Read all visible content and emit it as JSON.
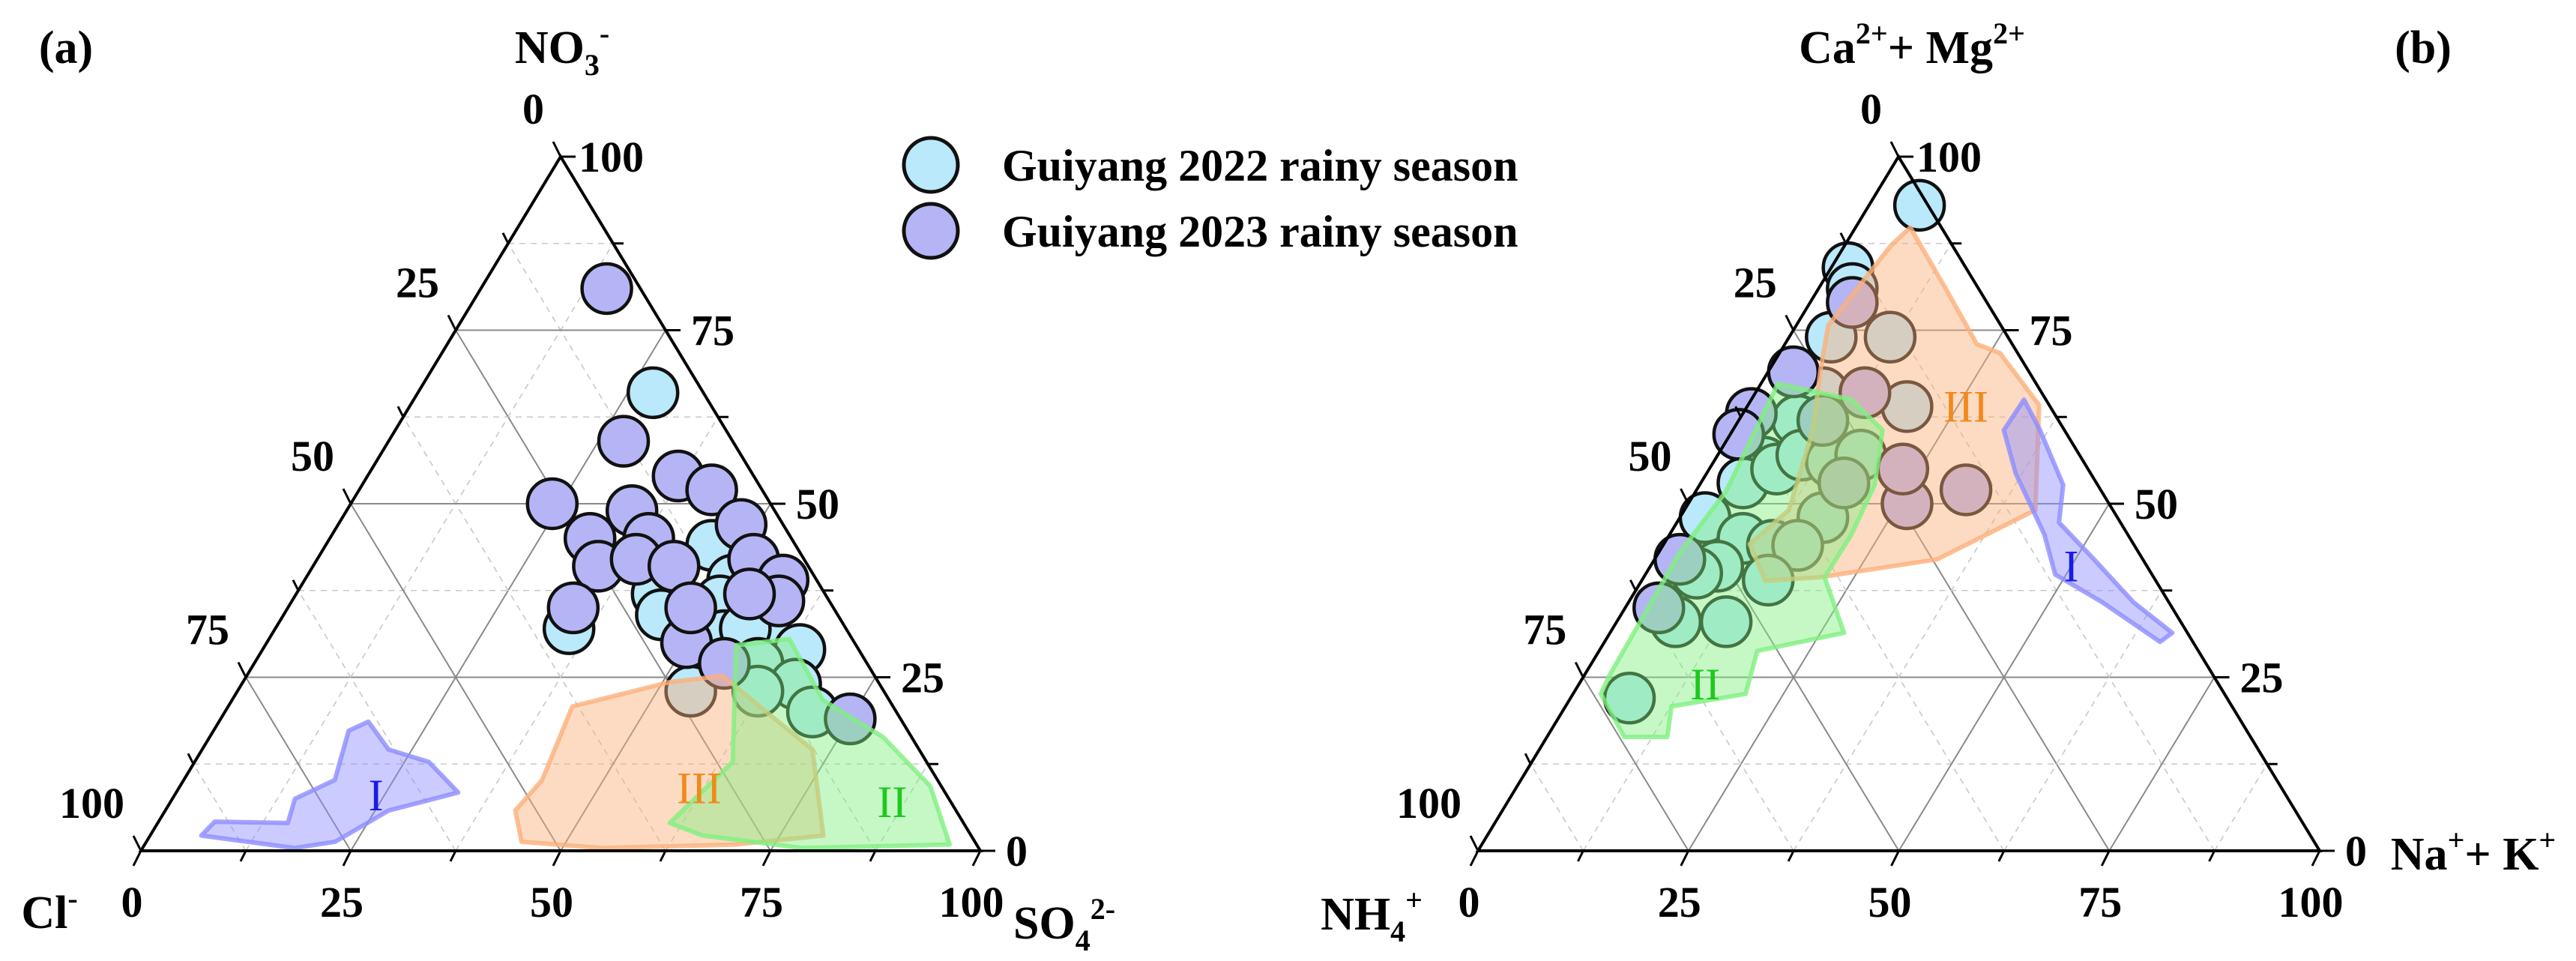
{
  "legend": {
    "items": [
      {
        "label": "Guiyang 2022 rainy season",
        "color": "#b9e9fb"
      },
      {
        "label": "Guiyang 2023 rainy season",
        "color": "#b5b5f5"
      }
    ]
  },
  "chart_data": [
    {
      "panel": "(a)",
      "type": "scatter",
      "subtype": "ternary",
      "grid": true,
      "legend_position": "top-center",
      "axes": {
        "top": {
          "title": [
            {
              "t": "NO"
            },
            {
              "t": "3",
              "pos": "sub"
            },
            {
              "t": "-",
              "pos": "sup"
            }
          ],
          "ticks": [
            "100",
            "75",
            "50",
            "25",
            "0"
          ]
        },
        "left": {
          "title": [
            {
              "t": "Cl"
            },
            {
              "t": "-",
              "pos": "sup"
            }
          ],
          "ticks": [
            "0",
            "25",
            "50",
            "75",
            "100"
          ]
        },
        "right": {
          "title": [
            {
              "t": "SO"
            },
            {
              "t": "4",
              "pos": "sub"
            },
            {
              "t": "2-",
              "pos": "sup"
            }
          ],
          "ticks": [
            "0",
            "25",
            "50",
            "75",
            "100"
          ]
        }
      },
      "point_format": "[top %, right %, left %]",
      "series": [
        {
          "name": "Guiyang 2022 rainy season",
          "color": "#b9e9fb",
          "points": [
            [
              66,
              28,
              6
            ],
            [
              44,
              46,
              10
            ],
            [
              39,
              51,
              10
            ],
            [
              37,
              43,
              20
            ],
            [
              34,
              45,
              21
            ],
            [
              36,
              51,
              13
            ],
            [
              32,
              35,
              33
            ],
            [
              31,
              54,
              15
            ],
            [
              30,
              60,
              10
            ],
            [
              29,
              64,
              7
            ],
            [
              32,
              56,
              12
            ],
            [
              27,
              60,
              13
            ],
            [
              24,
              66,
              10
            ],
            [
              23,
              62,
              15
            ],
            [
              20,
              70,
              10
            ],
            [
              23,
              54,
              23
            ]
          ]
        },
        {
          "name": "Guiyang 2023 rainy season",
          "color": "#b5b5f5",
          "points": [
            [
              81,
              15,
              4
            ],
            [
              59,
              28,
              13
            ],
            [
              54,
              37,
              9
            ],
            [
              52,
              42,
              6
            ],
            [
              50,
              24,
              26
            ],
            [
              49,
              34,
              17
            ],
            [
              45,
              31,
              24
            ],
            [
              47,
              48,
              5
            ],
            [
              45,
              38,
              17
            ],
            [
              41,
              34,
              25
            ],
            [
              42,
              52,
              6
            ],
            [
              42,
              38,
              20
            ],
            [
              39,
              57,
              4
            ],
            [
              41,
              43,
              16
            ],
            [
              35,
              34,
              31
            ],
            [
              36,
              58,
              6
            ],
            [
              37,
              54,
              9
            ],
            [
              30,
              50,
              20
            ],
            [
              27,
              56,
              17
            ],
            [
              19,
              75,
              6
            ],
            [
              35,
              48,
              17
            ]
          ]
        }
      ],
      "regions": [
        {
          "label": "I",
          "fill": "#8c8cff",
          "text_color": "#1a1ae6",
          "label_at": [
            8,
            24
          ],
          "polygon": [
            [
              2.2,
              6.1
            ],
            [
              4.2,
              6.7
            ],
            [
              4,
              15.5
            ],
            [
              7.5,
              14.6
            ],
            [
              10.2,
              18
            ],
            [
              17.3,
              16.1
            ],
            [
              18.6,
              17.8
            ],
            [
              14.6,
              22.2
            ],
            [
              12.8,
              27.9
            ],
            [
              8.4,
              33.6
            ],
            [
              5.8,
              26.6
            ],
            [
              1.3,
              22.5
            ],
            [
              0.4,
              18.1
            ]
          ]
        },
        {
          "label": "III",
          "fill": "#fbb07a",
          "text_color": "#f2891a",
          "label_at": [
            9,
            62
          ],
          "polygon": [
            [
              5.8,
              41.7
            ],
            [
              10.2,
              42.7
            ],
            [
              20.8,
              41
            ],
            [
              24.3,
              50.8
            ],
            [
              25.2,
              56.7
            ],
            [
              18.1,
              67.4
            ],
            [
              14.6,
              72.7
            ],
            [
              2.2,
              80.2
            ],
            [
              0.9,
              70.4
            ],
            [
              0.4,
              54.7
            ],
            [
              1.3,
              44.7
            ]
          ]
        },
        {
          "label": "II",
          "fill": "#80f080",
          "text_color": "#1ec81e",
          "label_at": [
            7,
            86
          ],
          "polygon": [
            [
              4,
              61
            ],
            [
              12.8,
              64.1
            ],
            [
              29.6,
              56.1
            ],
            [
              30.5,
              62
            ],
            [
              21.7,
              70.4
            ],
            [
              16.4,
              80.2
            ],
            [
              9.3,
              89.4
            ],
            [
              0.9,
              95.9
            ],
            [
              0.4,
              78.6
            ],
            [
              2.2,
              65.8
            ]
          ]
        }
      ]
    },
    {
      "panel": "(b)",
      "type": "scatter",
      "subtype": "ternary",
      "grid": true,
      "axes": {
        "top": {
          "title": [
            {
              "t": "Ca"
            },
            {
              "t": "2+",
              "pos": "sup"
            },
            {
              "t": "+ Mg"
            },
            {
              "t": "2+",
              "pos": "sup"
            }
          ],
          "ticks": [
            "100",
            "75",
            "50",
            "25",
            "0"
          ]
        },
        "left": {
          "title": [
            {
              "t": "NH"
            },
            {
              "t": "4",
              "pos": "sub"
            },
            {
              "t": "+",
              "pos": "sup"
            }
          ],
          "ticks": [
            "0",
            "25",
            "50",
            "75",
            "100"
          ]
        },
        "right": {
          "title": [
            {
              "t": "Na"
            },
            {
              "t": "+",
              "pos": "sup"
            },
            {
              "t": "+ K"
            },
            {
              "t": "+",
              "pos": "sup"
            }
          ],
          "ticks": [
            "0",
            "25",
            "50",
            "75",
            "100"
          ]
        }
      },
      "point_format": "[top %, right %, left %]",
      "series": [
        {
          "name": "Guiyang 2022 rainy season",
          "color": "#b9e9fb",
          "points": [
            [
              93,
              6,
              1
            ],
            [
              84,
              2,
              14
            ],
            [
              81,
              4,
              15
            ],
            [
              74,
              5,
              21
            ],
            [
              66,
              8,
              26
            ],
            [
              62,
              7,
              31
            ],
            [
              56,
              6,
              38
            ],
            [
              53,
              5,
              42
            ],
            [
              55,
              8,
              37
            ],
            [
              57,
              10,
              33
            ],
            [
              56,
              14,
              30
            ],
            [
              57,
              17,
              26
            ],
            [
              48,
              17,
              35
            ],
            [
              48,
              3,
              49
            ],
            [
              45,
              9,
              46
            ],
            [
              44,
              13,
              43
            ],
            [
              44,
              16,
              40
            ],
            [
              41,
              8,
              51
            ],
            [
              40,
              6,
              54
            ],
            [
              39,
              15,
              46
            ],
            [
              33,
              7,
              60
            ],
            [
              33,
              13,
              54
            ],
            [
              22,
              7,
              71
            ],
            [
              74,
              12,
              14
            ],
            [
              64,
              19,
              17
            ]
          ]
        },
        {
          "name": "Guiyang 2023 rainy season",
          "color": "#b5b5f5",
          "points": [
            [
              66,
              13,
              21
            ],
            [
              52,
              32,
              16
            ],
            [
              50,
              26,
              24
            ],
            [
              55,
              23,
              22
            ],
            [
              79,
              5,
              16
            ],
            [
              69,
              3,
              28
            ],
            [
              63,
              1,
              36
            ],
            [
              60,
              1,
              39
            ],
            [
              42,
              3,
              55
            ],
            [
              35,
              4,
              61
            ],
            [
              53,
              17,
              30
            ],
            [
              62,
              10,
              28
            ]
          ]
        }
      ],
      "regions": [
        {
          "label": "III",
          "fill": "#fbb07a",
          "text_color": "#f2891a",
          "label_at": [
            64,
            26
          ],
          "polygon": [
            [
              89.8,
              6.5
            ],
            [
              81,
              15.1
            ],
            [
              73,
              22.8
            ],
            [
              71.7,
              26.2
            ],
            [
              64.2,
              34.6
            ],
            [
              49.1,
              41.7
            ],
            [
              42,
              33.6
            ],
            [
              39.4,
              20.9
            ],
            [
              38.9,
              14.7
            ],
            [
              44.2,
              10.2
            ],
            [
              49.1,
              12.4
            ],
            [
              60.6,
              9.5
            ],
            [
              69.5,
              6
            ],
            [
              75.7,
              3.8
            ],
            [
              87.2,
              5.5
            ]
          ]
        },
        {
          "label": "II",
          "fill": "#80f080",
          "text_color": "#1ec81e",
          "label_at": [
            24,
            15
          ],
          "polygon": [
            [
              67.3,
              2
            ],
            [
              65,
              11.9
            ],
            [
              60.6,
              17.8
            ],
            [
              52.7,
              20.8
            ],
            [
              45.6,
              21.6
            ],
            [
              39.4,
              21.5
            ],
            [
              31.4,
              27.8
            ],
            [
              28.8,
              18.8
            ],
            [
              22.6,
              20.5
            ],
            [
              20.8,
              12.6
            ],
            [
              16.4,
              14.3
            ],
            [
              16.4,
              9.2
            ],
            [
              22.6,
              3.3
            ],
            [
              25.2,
              3
            ],
            [
              42.9,
              2.5
            ],
            [
              51.8,
              3.6
            ]
          ]
        },
        {
          "label": "I",
          "fill": "#8c8cff",
          "text_color": "#1a1ae6",
          "label_at": [
            41,
            50
          ],
          "polygon": [
            [
              65,
              32.4
            ],
            [
              60.6,
              36.5
            ],
            [
              52.7,
              43.2
            ],
            [
              47.3,
              45.4
            ],
            [
              42,
              52.2
            ],
            [
              35.8,
              60
            ],
            [
              31.4,
              66.8
            ],
            [
              30.1,
              66
            ],
            [
              35.8,
              56.3
            ],
            [
              39.8,
              48.7
            ],
            [
              45.6,
              44.5
            ],
            [
              54.4,
              36.7
            ],
            [
              60.6,
              32.2
            ]
          ]
        }
      ]
    }
  ]
}
